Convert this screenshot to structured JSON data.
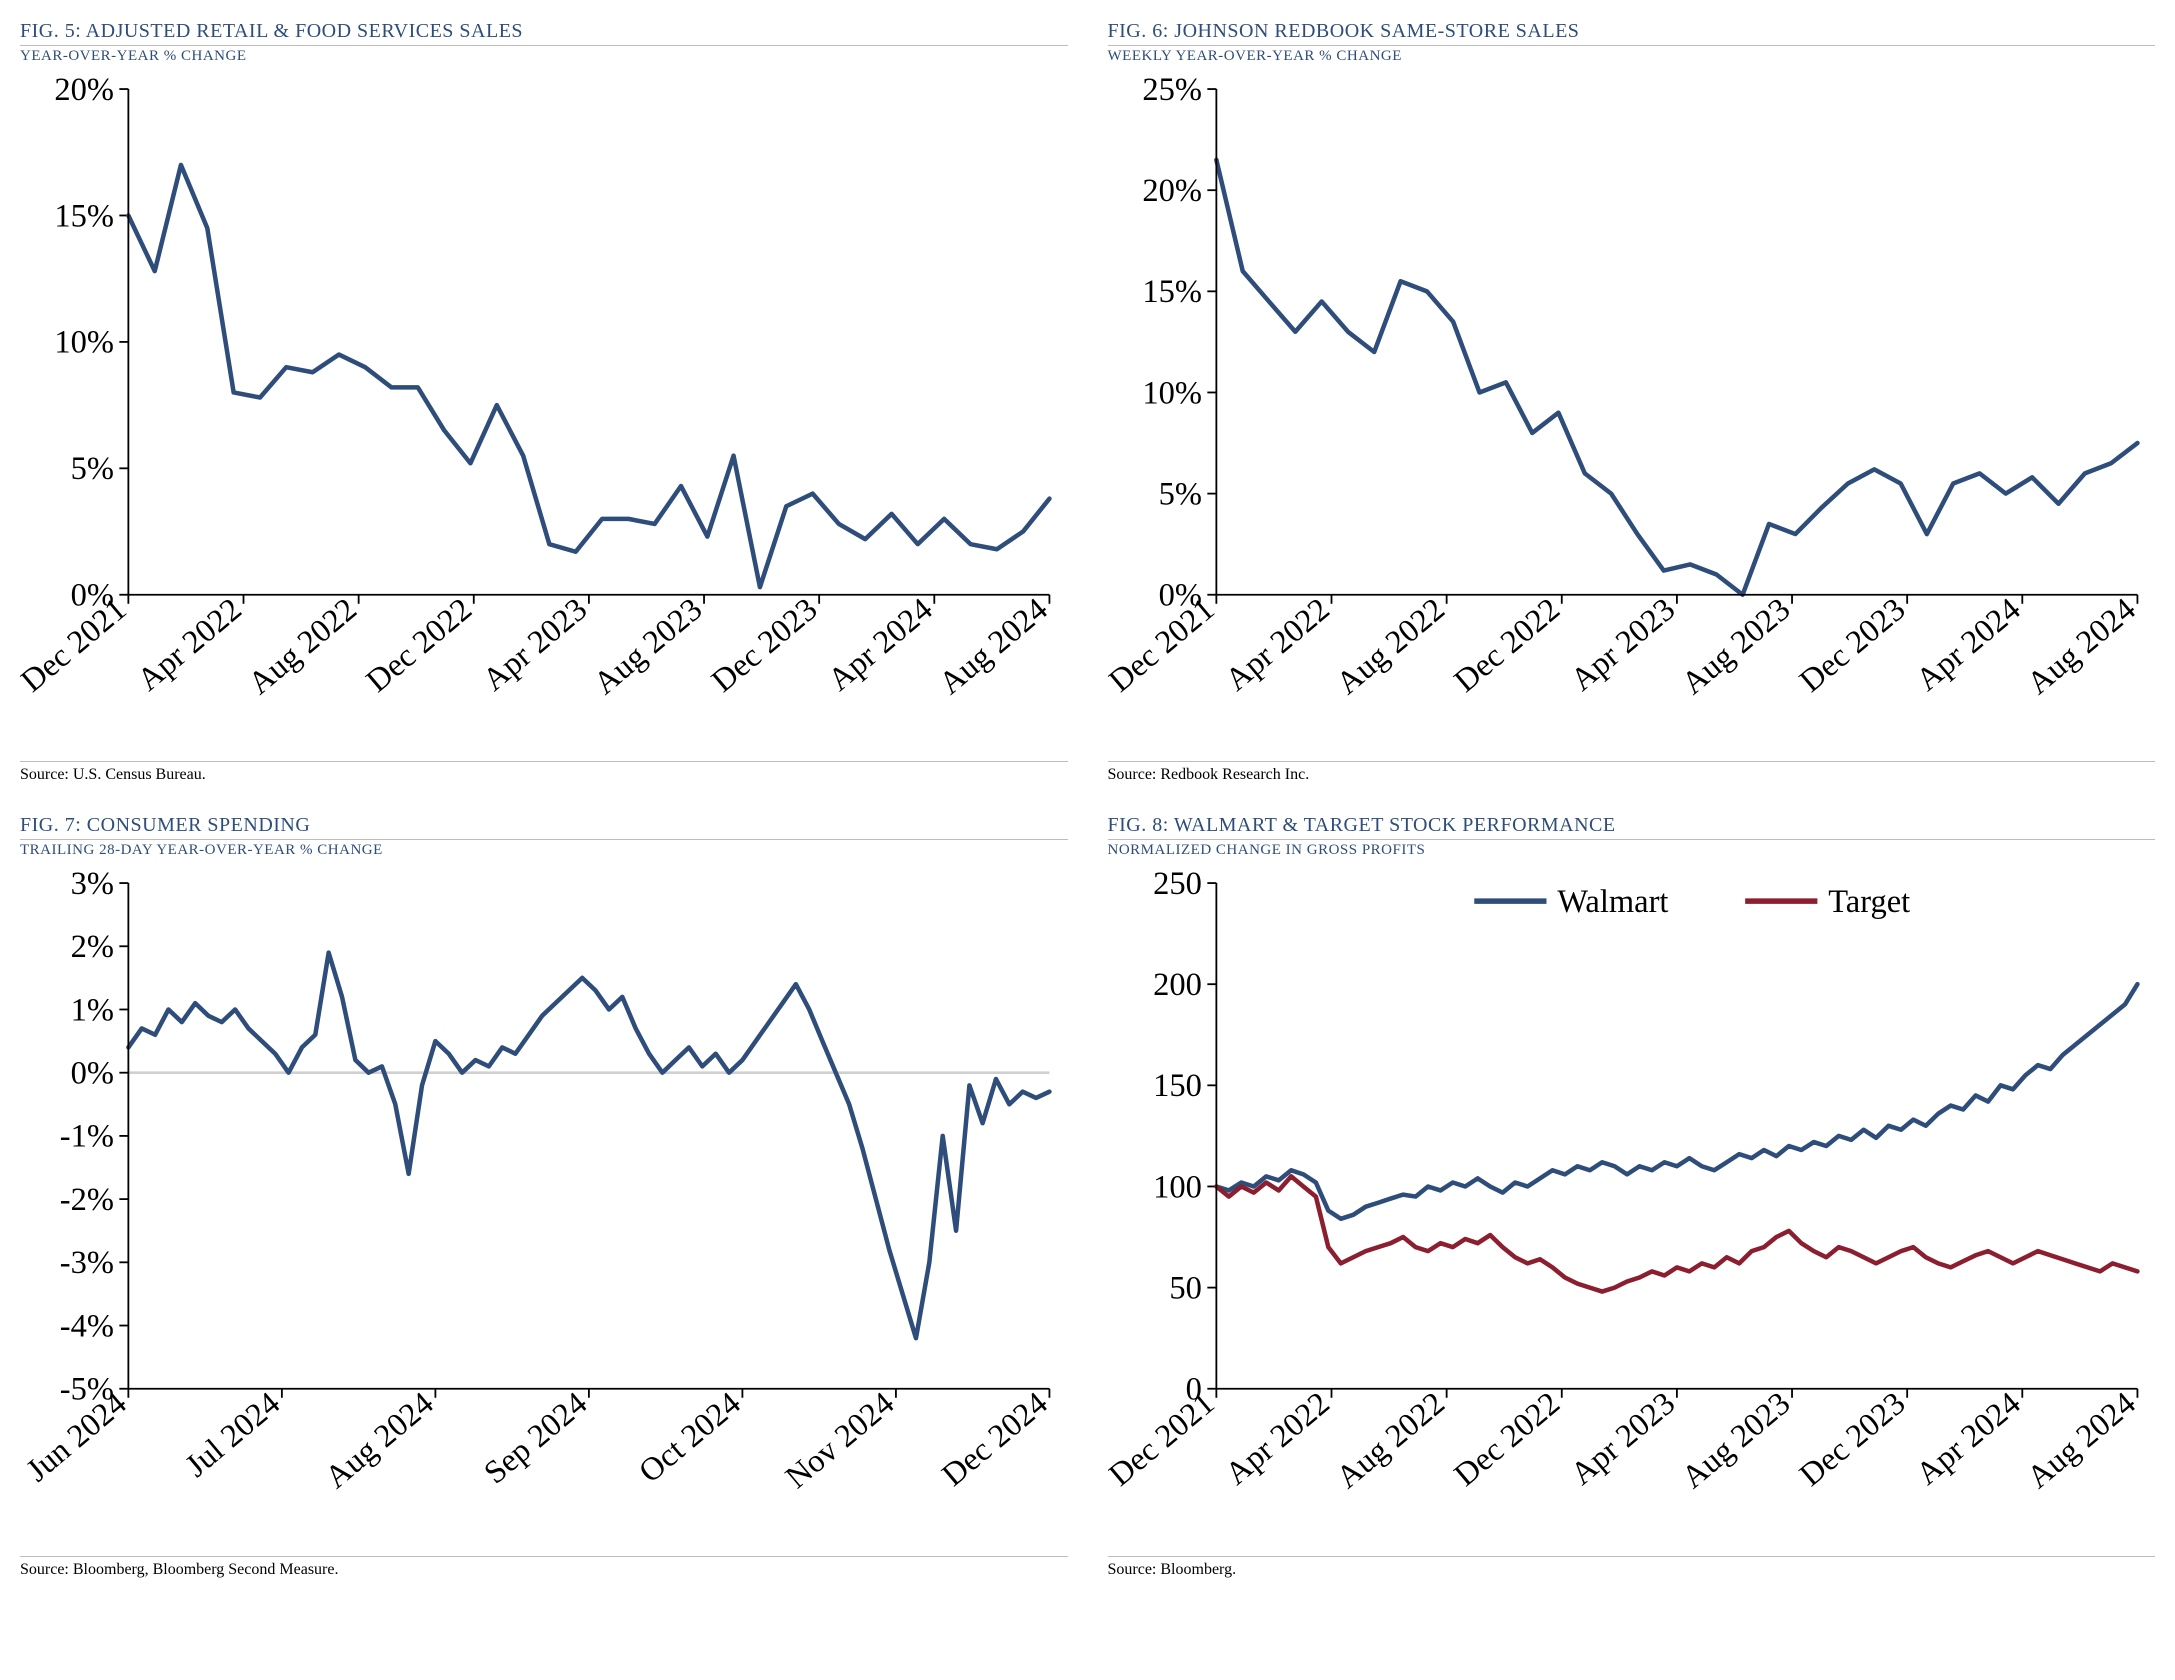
{
  "colors": {
    "title": "#2e4d7a",
    "line_primary": "#2e4d7a",
    "line_secondary": "#8b1f2f",
    "axis": "#000000",
    "grid_zero": "#d0d0d0",
    "rule": "#bcbcbc",
    "bg": "#ffffff"
  },
  "typography": {
    "title_fontsize": 20,
    "subtitle_fontsize": 15,
    "tick_fontsize": 18,
    "source_fontsize": 16,
    "legend_fontsize": 18,
    "font_family": "Georgia, serif"
  },
  "fig5": {
    "type": "line",
    "title": "FIG. 5: ADJUSTED RETAIL & FOOD SERVICES SALES",
    "subtitle": "YEAR-OVER-YEAR % CHANGE",
    "source": "Source: U.S. Census Bureau.",
    "ylim": [
      0,
      20
    ],
    "ytick_step": 5,
    "ytick_suffix": "%",
    "x_labels": [
      "Dec 2021",
      "Apr 2022",
      "Aug 2022",
      "Dec 2022",
      "Apr 2023",
      "Aug 2023",
      "Dec 2023",
      "Apr 2024",
      "Aug 2024"
    ],
    "series": [
      {
        "name": "sales",
        "color": "#2e4d7a",
        "width": 2.5,
        "values": [
          15.0,
          12.8,
          17.0,
          14.5,
          8.0,
          7.8,
          9.0,
          8.8,
          9.5,
          9.0,
          8.2,
          8.2,
          6.5,
          5.2,
          7.5,
          5.5,
          2.0,
          1.7,
          3.0,
          3.0,
          2.8,
          4.3,
          2.3,
          5.5,
          0.3,
          3.5,
          4.0,
          2.8,
          2.2,
          3.2,
          2.0,
          3.0,
          2.0,
          1.8,
          2.5,
          3.8
        ]
      }
    ]
  },
  "fig6": {
    "type": "line",
    "title": "FIG. 6: JOHNSON REDBOOK SAME-STORE SALES",
    "subtitle": "WEEKLY YEAR-OVER-YEAR % CHANGE",
    "source": "Source: Redbook Research Inc.",
    "ylim": [
      0,
      25
    ],
    "ytick_step": 5,
    "ytick_suffix": "%",
    "x_labels": [
      "Dec 2021",
      "Apr 2022",
      "Aug 2022",
      "Dec 2022",
      "Apr 2023",
      "Aug 2023",
      "Dec 2023",
      "Apr 2024",
      "Aug 2024"
    ],
    "series": [
      {
        "name": "redbook",
        "color": "#2e4d7a",
        "width": 2.5,
        "values": [
          21.5,
          16.0,
          14.5,
          13.0,
          14.5,
          13.0,
          12.0,
          15.5,
          15.0,
          13.5,
          10.0,
          10.5,
          8.0,
          9.0,
          6.0,
          5.0,
          3.0,
          1.2,
          1.5,
          1.0,
          0.0,
          3.5,
          3.0,
          4.3,
          5.5,
          6.2,
          5.5,
          3.0,
          5.5,
          6.0,
          5.0,
          5.8,
          4.5,
          6.0,
          6.5,
          7.5
        ]
      }
    ]
  },
  "fig7": {
    "type": "line",
    "title": "FIG. 7: CONSUMER SPENDING",
    "subtitle": "TRAILING 28-DAY YEAR-OVER-YEAR % CHANGE",
    "source": "Source: Bloomberg, Bloomberg Second Measure.",
    "ylim": [
      -5,
      3
    ],
    "ytick_step": 1,
    "ytick_suffix": "%",
    "zero_line": true,
    "x_labels": [
      "Jun 2024",
      "Jul 2024",
      "Aug 2024",
      "Sep 2024",
      "Oct 2024",
      "Nov 2024",
      "Dec 2024"
    ],
    "series": [
      {
        "name": "spending",
        "color": "#2e4d7a",
        "width": 2.5,
        "values": [
          0.4,
          0.7,
          0.6,
          1.0,
          0.8,
          1.1,
          0.9,
          0.8,
          1.0,
          0.7,
          0.5,
          0.3,
          0.0,
          0.4,
          0.6,
          1.9,
          1.2,
          0.2,
          0.0,
          0.1,
          -0.5,
          -1.6,
          -0.2,
          0.5,
          0.3,
          0.0,
          0.2,
          0.1,
          0.4,
          0.3,
          0.6,
          0.9,
          1.1,
          1.3,
          1.5,
          1.3,
          1.0,
          1.2,
          0.7,
          0.3,
          0.0,
          0.2,
          0.4,
          0.1,
          0.3,
          0.0,
          0.2,
          0.5,
          0.8,
          1.1,
          1.4,
          1.0,
          0.5,
          0.0,
          -0.5,
          -1.2,
          -2.0,
          -2.8,
          -3.5,
          -4.2,
          -3.0,
          -1.0,
          -2.5,
          -0.2,
          -0.8,
          -0.1,
          -0.5,
          -0.3,
          -0.4,
          -0.3
        ]
      }
    ]
  },
  "fig8": {
    "type": "line",
    "title": "FIG. 8: WALMART & TARGET STOCK PERFORMANCE",
    "subtitle": "NORMALIZED CHANGE IN GROSS PROFITS",
    "source": "Source: Bloomberg.",
    "ylim": [
      0,
      250
    ],
    "ytick_step": 50,
    "ytick_suffix": "",
    "x_labels": [
      "Dec 2021",
      "Apr 2022",
      "Aug 2022",
      "Dec 2022",
      "Apr 2023",
      "Aug 2023",
      "Dec 2023",
      "Apr 2024",
      "Aug 2024"
    ],
    "legend": [
      {
        "label": "Walmart",
        "color": "#2e4d7a"
      },
      {
        "label": "Target",
        "color": "#8b1f2f"
      }
    ],
    "series": [
      {
        "name": "walmart",
        "color": "#2e4d7a",
        "width": 2.5,
        "values": [
          100,
          98,
          102,
          100,
          105,
          103,
          108,
          106,
          102,
          88,
          84,
          86,
          90,
          92,
          94,
          96,
          95,
          100,
          98,
          102,
          100,
          104,
          100,
          97,
          102,
          100,
          104,
          108,
          106,
          110,
          108,
          112,
          110,
          106,
          110,
          108,
          112,
          110,
          114,
          110,
          108,
          112,
          116,
          114,
          118,
          115,
          120,
          118,
          122,
          120,
          125,
          123,
          128,
          124,
          130,
          128,
          133,
          130,
          136,
          140,
          138,
          145,
          142,
          150,
          148,
          155,
          160,
          158,
          165,
          170,
          175,
          180,
          185,
          190,
          200
        ]
      },
      {
        "name": "target",
        "color": "#8b1f2f",
        "width": 2.5,
        "values": [
          100,
          95,
          100,
          97,
          102,
          98,
          105,
          100,
          95,
          70,
          62,
          65,
          68,
          70,
          72,
          75,
          70,
          68,
          72,
          70,
          74,
          72,
          76,
          70,
          65,
          62,
          64,
          60,
          55,
          52,
          50,
          48,
          50,
          53,
          55,
          58,
          56,
          60,
          58,
          62,
          60,
          65,
          62,
          68,
          70,
          75,
          78,
          72,
          68,
          65,
          70,
          68,
          65,
          62,
          65,
          68,
          70,
          65,
          62,
          60,
          63,
          66,
          68,
          65,
          62,
          65,
          68,
          66,
          64,
          62,
          60,
          58,
          62,
          60,
          58
        ]
      }
    ]
  }
}
